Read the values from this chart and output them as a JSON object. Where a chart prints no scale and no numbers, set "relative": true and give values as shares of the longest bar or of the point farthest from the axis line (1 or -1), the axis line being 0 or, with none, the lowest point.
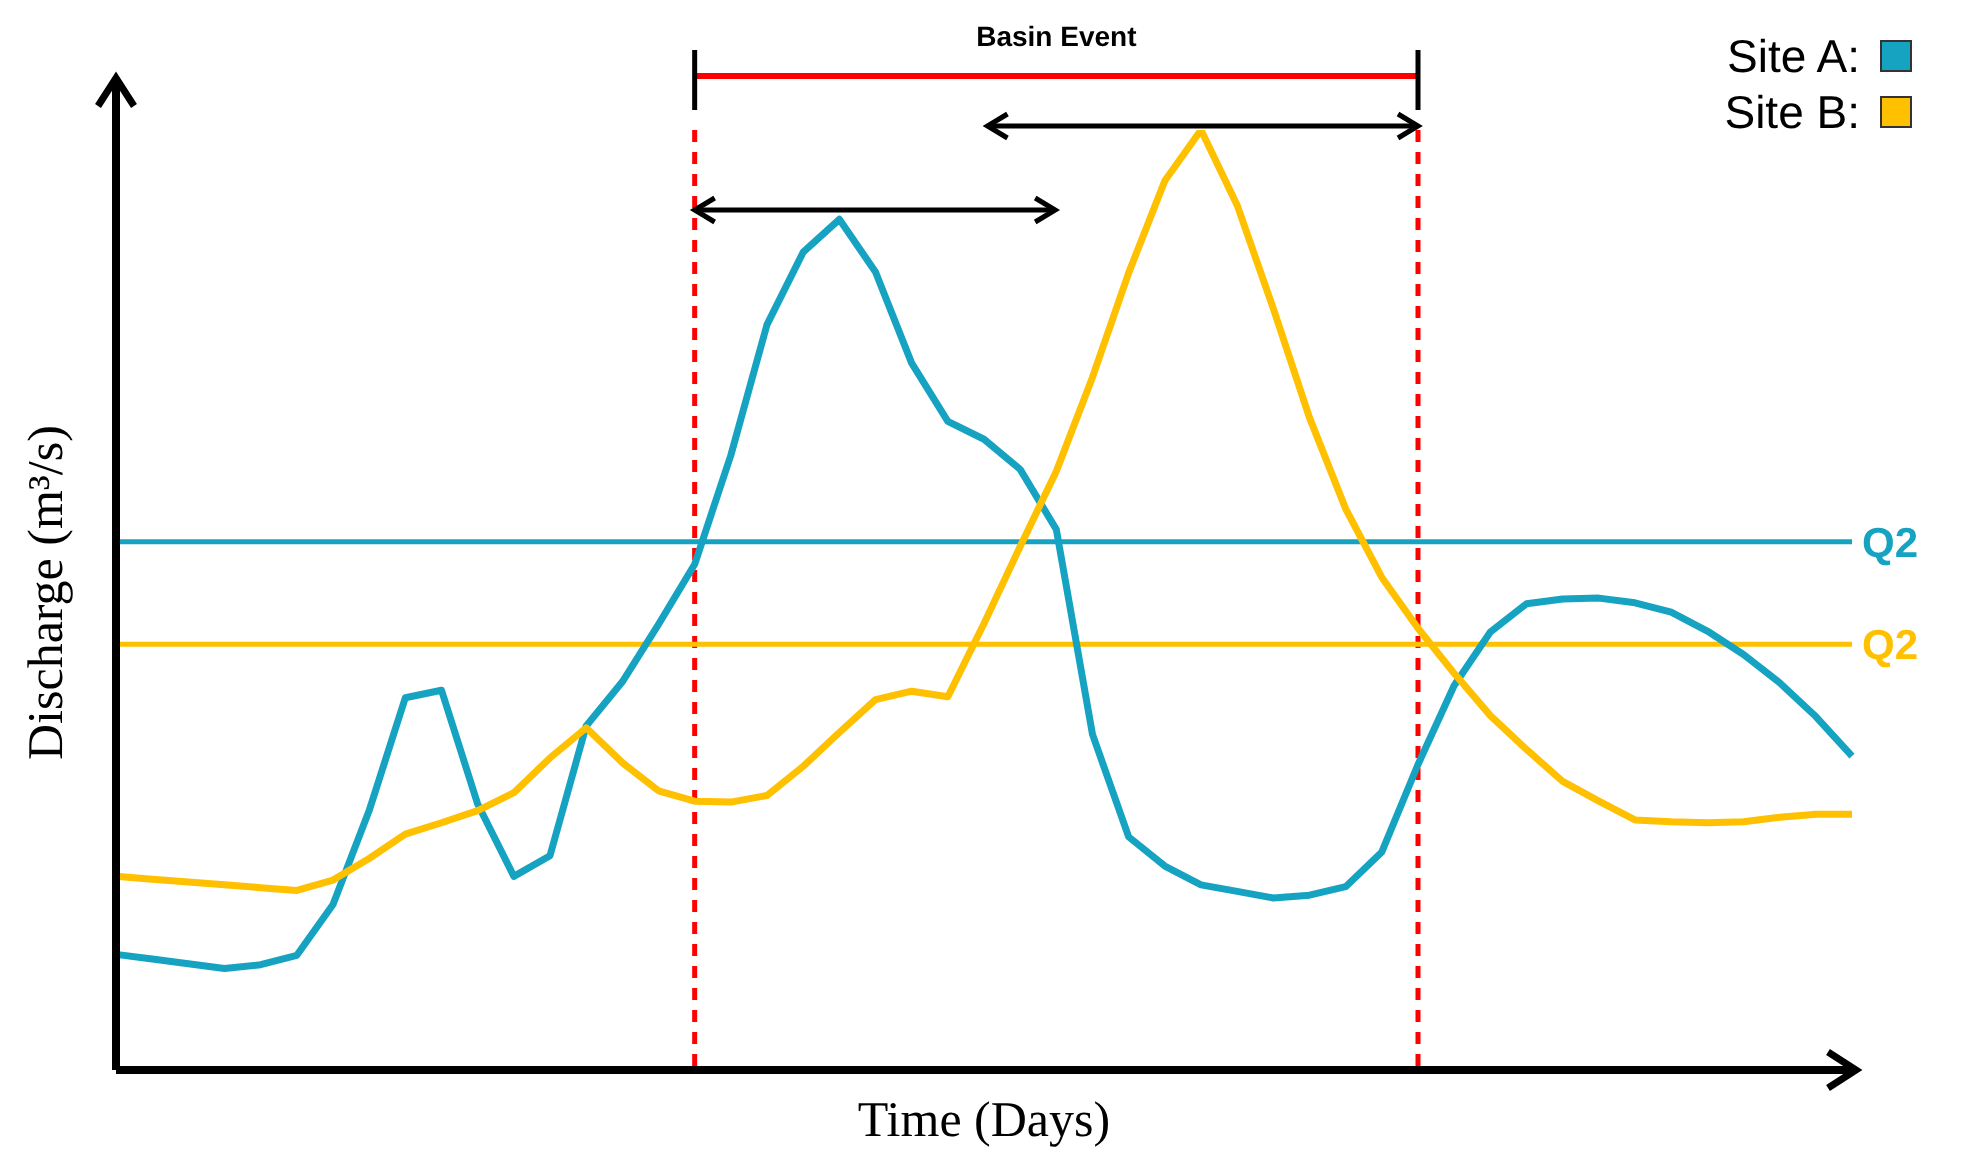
{
  "chart_data": {
    "type": "line",
    "relative": true,
    "xlabel": "Time (Days)",
    "ylabel": "Discharge (m³/s)",
    "legend": "top right",
    "annotations": [
      "Basin Event"
    ],
    "categories": [
      null,
      null,
      null,
      null,
      null,
      null,
      null,
      null,
      null,
      null,
      null,
      null,
      null,
      null,
      null,
      null,
      null,
      null,
      null,
      null,
      null,
      null,
      null,
      null,
      null,
      null,
      null,
      null,
      null,
      null,
      null,
      null,
      null,
      null,
      null,
      null,
      null,
      null,
      null,
      null,
      null,
      null,
      null,
      null,
      null,
      null,
      null,
      null,
      null
    ],
    "ref_lines": [
      {
        "axis": "y",
        "value": 0.562,
        "label": "Q2",
        "color": "#16a3c2"
      },
      {
        "axis": "y",
        "value": 0.453,
        "label": "Q2",
        "color": "#ffc000"
      }
    ],
    "series": [
      {
        "name": "Site A:",
        "color": "#16a3c2",
        "values": [
          0.123,
          0.118,
          0.113,
          0.108,
          0.112,
          0.122,
          0.176,
          0.276,
          0.396,
          0.404,
          0.283,
          0.206,
          0.228,
          0.366,
          0.413,
          0.474,
          0.538,
          0.654,
          0.793,
          0.87,
          0.905,
          0.849,
          0.752,
          0.69,
          0.671,
          0.639,
          0.575,
          0.357,
          0.248,
          0.217,
          0.197,
          0.19,
          0.183,
          0.186,
          0.195,
          0.232,
          0.325,
          0.409,
          0.466,
          0.496,
          0.501,
          0.502,
          0.497,
          0.487,
          0.467,
          0.442,
          0.412,
          0.376,
          0.334
        ]
      },
      {
        "name": "Site B:",
        "color": "#ffc000",
        "values": [
          0.206,
          0.203,
          0.2,
          0.197,
          0.194,
          0.191,
          0.202,
          0.225,
          0.251,
          0.263,
          0.276,
          0.295,
          0.332,
          0.364,
          0.327,
          0.297,
          0.286,
          0.285,
          0.292,
          0.323,
          0.359,
          0.394,
          0.403,
          0.397,
          0.475,
          0.557,
          0.637,
          0.737,
          0.848,
          0.946,
          1,
          0.92,
          0.81,
          0.694,
          0.597,
          0.524,
          0.47,
          0.422,
          0.377,
          0.341,
          0.307,
          0.286,
          0.266,
          0.264,
          0.263,
          0.264,
          0.269,
          0.272,
          0.272
        ]
      }
    ]
  }
}
